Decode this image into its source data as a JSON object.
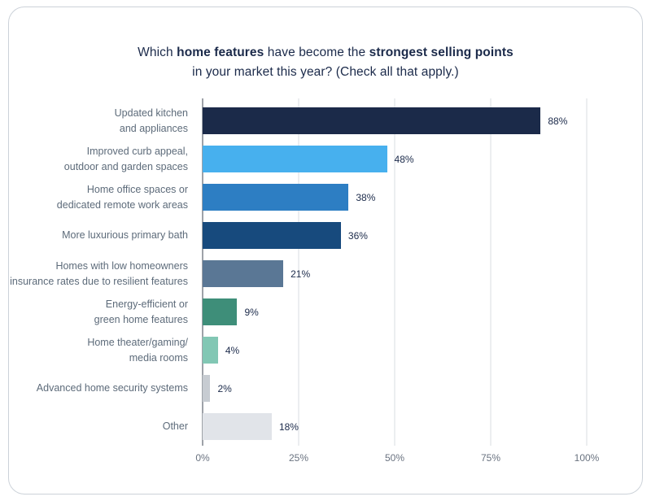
{
  "theme": {
    "title_text": "#1b2a4a",
    "label_text": "#5d6b7a",
    "value_text": "#1b2a4a",
    "tick_text": "#6a7380",
    "gridline": "#d8dce1",
    "zero_line": "#3d4552",
    "card_border": "#ccd2d9",
    "card_bg": "#ffffff"
  },
  "title": {
    "segments": [
      {
        "text": "Which ",
        "bold": false
      },
      {
        "text": "home features",
        "bold": true
      },
      {
        "text": " have become the ",
        "bold": false
      },
      {
        "text": "strongest selling points",
        "bold": true
      },
      {
        "text": "\nin your market this year? (Check all that apply.)",
        "bold": false
      }
    ]
  },
  "chart_data": {
    "type": "bar",
    "orientation": "horizontal",
    "title": "Which home features have become the strongest selling points in your market this year? (Check all that apply.)",
    "categories": [
      "Updated kitchen\nand appliances",
      "Improved curb appeal,\noutdoor and garden spaces",
      "Home office spaces or\ndedicated remote work areas",
      "More luxurious primary bath",
      "Homes with low homeowners\ninsurance rates due to resilient features",
      "Energy-efficient or\ngreen home features",
      "Home theater/gaming/\nmedia rooms",
      "Advanced home security systems",
      "Other"
    ],
    "values": [
      88,
      48,
      38,
      36,
      21,
      9,
      4,
      2,
      18
    ],
    "value_labels": [
      "88%",
      "48%",
      "38%",
      "36%",
      "21%",
      "9%",
      "4%",
      "2%",
      "18%"
    ],
    "bar_colors": [
      "#1b2a49",
      "#47b0ee",
      "#2d7ec3",
      "#174a7d",
      "#5a7795",
      "#3e8e79",
      "#82c7b4",
      "#c7ccd2",
      "#e1e4e9"
    ],
    "xlim": [
      0,
      100
    ],
    "xticks": [
      0,
      25,
      50,
      75,
      100
    ],
    "xtick_labels": [
      "0%",
      "25%",
      "50%",
      "75%",
      "100%"
    ],
    "grid": "vertical",
    "legend": "none"
  }
}
